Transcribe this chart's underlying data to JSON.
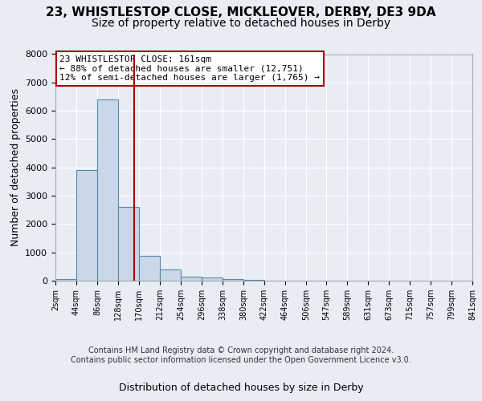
{
  "title_line1": "23, WHISTLESTOP CLOSE, MICKLEOVER, DERBY, DE3 9DA",
  "title_line2": "Size of property relative to detached houses in Derby",
  "xlabel": "Distribution of detached houses by size in Derby",
  "ylabel": "Number of detached properties",
  "footer_line1": "Contains HM Land Registry data © Crown copyright and database right 2024.",
  "footer_line2": "Contains public sector information licensed under the Open Government Licence v3.0.",
  "annotation_line1": "23 WHISTLESTOP CLOSE: 161sqm",
  "annotation_line2": "← 88% of detached houses are smaller (12,751)",
  "annotation_line3": "12% of semi-detached houses are larger (1,765) →",
  "bar_edges": [
    2,
    44,
    86,
    128,
    170,
    212,
    254,
    296,
    338,
    380,
    422,
    464,
    506,
    547,
    589,
    631,
    673,
    715,
    757,
    799,
    841
  ],
  "bar_heights": [
    50,
    3900,
    6400,
    2600,
    870,
    400,
    150,
    100,
    50,
    20,
    10,
    5,
    3,
    2,
    1,
    1,
    1,
    0,
    0,
    0
  ],
  "bar_color": "#c8d8e8",
  "bar_edge_color": "#5588aa",
  "vline_x": 161,
  "vline_color": "#aa0000",
  "ylim": [
    0,
    8000
  ],
  "yticks": [
    0,
    1000,
    2000,
    3000,
    4000,
    5000,
    6000,
    7000,
    8000
  ],
  "bg_color": "#e8ecf4",
  "plot_bg_color": "#e8ecf4",
  "grid_color": "#ffffff",
  "title_fontsize": 11,
  "subtitle_fontsize": 10,
  "label_fontsize": 9,
  "footer_fontsize": 7,
  "annotation_fontsize": 8
}
